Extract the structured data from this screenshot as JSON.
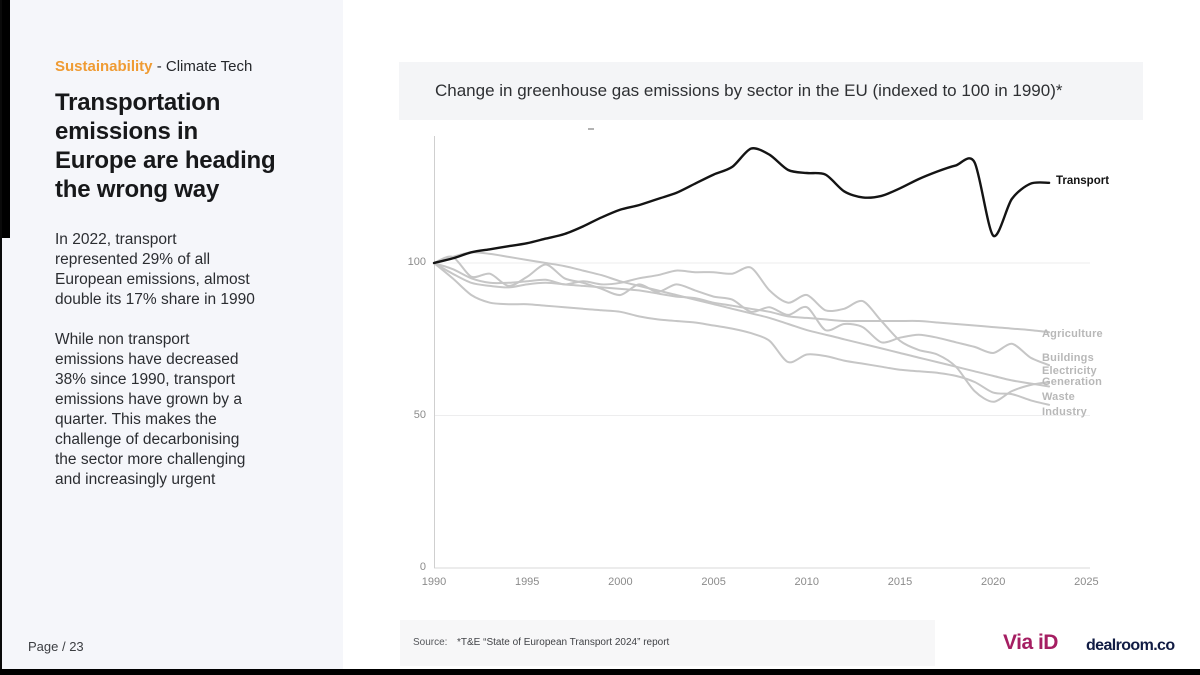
{
  "sidebar": {
    "eyebrow": {
      "highlight": "Sustainability",
      "rest": " - Climate Tech"
    },
    "title": "Transportation\nemissions in\nEurope are heading\nthe wrong way",
    "paragraphs": [
      "In 2022, transport\nrepresented 29% of all\nEuropean emissions, almost\ndouble its 17% share in 1990",
      "While non transport\nemissions have decreased\n38% since 1990, transport\nemissions have grown by a\nquarter. This makes the\nchallenge of decarbonising\nthe sector more challenging\nand increasingly urgent"
    ],
    "page_label": "Page / 23"
  },
  "chart_data": {
    "type": "line",
    "title": "Change in greenhouse gas emissions by sector in the EU (indexed to 100 in 1990)*",
    "x": [
      1990,
      1991,
      1992,
      1993,
      1994,
      1995,
      1996,
      1997,
      1998,
      1999,
      2000,
      2001,
      2002,
      2003,
      2004,
      2005,
      2006,
      2007,
      2008,
      2009,
      2010,
      2011,
      2012,
      2013,
      2014,
      2015,
      2016,
      2017,
      2018,
      2019,
      2020,
      2021,
      2022,
      2023
    ],
    "x_ticks": [
      1990,
      1995,
      2000,
      2005,
      2010,
      2015,
      2020,
      2025
    ],
    "y_ticks": [
      0,
      50,
      100
    ],
    "xlim": [
      1990,
      2025
    ],
    "ylim": [
      0,
      145
    ],
    "grid": "horizontal gridlines at 50 and 100",
    "legend_position": "right edge labels",
    "series": [
      {
        "name": "Agriculture",
        "color": "#c6c6c6",
        "values": [
          100,
          96.5,
          93.5,
          92.5,
          92,
          93,
          93.5,
          93,
          92.5,
          92,
          91.5,
          91,
          90,
          89,
          88.5,
          87,
          86,
          85,
          84,
          82.5,
          82,
          81.5,
          81,
          81,
          81,
          81,
          81,
          80.5,
          80,
          79.5,
          79,
          78.5,
          78,
          77.3
        ]
      },
      {
        "name": "Buildings",
        "color": "#c6c6c6",
        "values": [
          100,
          102,
          95.5,
          96.5,
          92.5,
          95.5,
          99.5,
          95,
          93.5,
          91.5,
          89.5,
          93,
          90.5,
          93,
          91,
          89,
          88,
          84,
          85.5,
          83,
          85.5,
          78,
          80,
          79,
          74,
          75.5,
          76.5,
          75.5,
          74,
          72.5,
          70.5,
          73.5,
          69,
          66.5
        ]
      },
      {
        "name": "Electricity Generation",
        "color": "#c6c6c6",
        "values": [
          100,
          98,
          95,
          93.5,
          93.5,
          94,
          94.5,
          93,
          94,
          93,
          93.5,
          95,
          96,
          97.5,
          97,
          97,
          96.5,
          98.5,
          91,
          87,
          89.5,
          84.5,
          85,
          87.5,
          81,
          74.5,
          71.5,
          70,
          66,
          58,
          54.5,
          58,
          60,
          61
        ]
      },
      {
        "name": "Waste",
        "color": "#c6c6c6",
        "values": [
          100,
          102,
          103.5,
          103,
          102,
          101,
          100,
          99,
          97.5,
          96,
          94,
          92.5,
          91,
          89.5,
          88,
          86.5,
          85,
          83.5,
          82,
          80,
          78,
          76.5,
          75,
          73.5,
          72,
          70.5,
          69,
          67.5,
          66,
          64.5,
          63,
          61.5,
          60.5,
          59.5
        ]
      },
      {
        "name": "Industry",
        "color": "#c6c6c6",
        "values": [
          100,
          95,
          89.5,
          87,
          86.5,
          86.5,
          86,
          85.5,
          85,
          84.5,
          84,
          82.5,
          81.5,
          81,
          80.5,
          79.5,
          78.5,
          77,
          74.5,
          67.5,
          70,
          69.5,
          68,
          67,
          66,
          65,
          64.5,
          64,
          63,
          61,
          57.5,
          57,
          55,
          53.5
        ]
      },
      {
        "name": "Transport",
        "color": "#141414",
        "emphasis": true,
        "values": [
          100,
          101.5,
          103.5,
          104.5,
          105.5,
          106.5,
          108,
          109.5,
          112,
          115,
          117.5,
          119,
          121,
          123,
          126,
          129,
          131.5,
          137.5,
          135.5,
          130.5,
          129.5,
          129,
          123.5,
          121.5,
          122,
          124.5,
          127.5,
          130,
          132,
          133,
          109,
          121,
          126,
          126.3
        ]
      }
    ]
  },
  "footer": {
    "source_label": "Source:",
    "source_text": "*T&E “State of European Transport 2024” report",
    "logos": [
      "Via iD",
      "dealroom.co"
    ]
  }
}
